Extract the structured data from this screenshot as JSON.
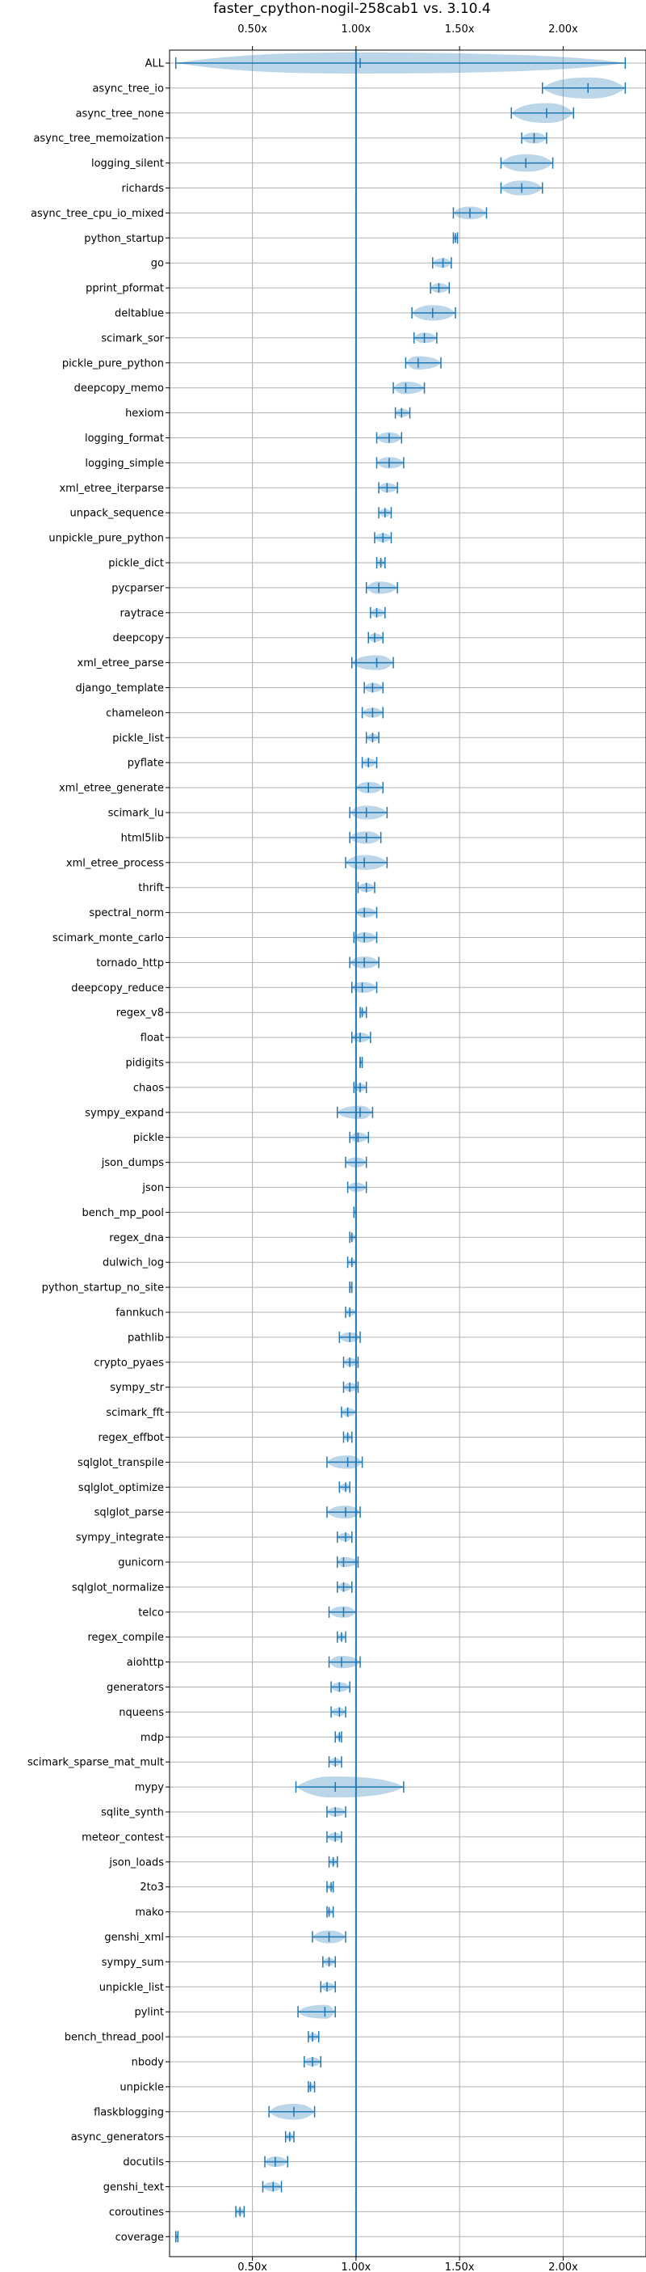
{
  "chart_data": {
    "type": "violin",
    "title": "faster_cpython-nogil-258cab1 vs. 3.10.4",
    "xlim": [
      0.1,
      2.4
    ],
    "xticks": [
      {
        "value": 0.5,
        "label": "0.50x"
      },
      {
        "value": 1.0,
        "label": "1.00x"
      },
      {
        "value": 1.5,
        "label": "1.50x"
      },
      {
        "value": 2.0,
        "label": "2.00x"
      }
    ],
    "reference_line": 1.0,
    "grid": true,
    "colors": {
      "violin": "#1f77b4",
      "line": "#1f77b4",
      "grid": "#b0b0b0"
    },
    "benchmarks": [
      {
        "name": "ALL",
        "min": 0.13,
        "max": 2.3,
        "median": 1.02
      },
      {
        "name": "async_tree_io",
        "min": 1.9,
        "max": 2.3,
        "median": 2.12
      },
      {
        "name": "async_tree_none",
        "min": 1.75,
        "max": 2.05,
        "median": 1.92
      },
      {
        "name": "async_tree_memoization",
        "min": 1.8,
        "max": 1.92,
        "median": 1.86
      },
      {
        "name": "logging_silent",
        "min": 1.7,
        "max": 1.95,
        "median": 1.82
      },
      {
        "name": "richards",
        "min": 1.7,
        "max": 1.9,
        "median": 1.8
      },
      {
        "name": "async_tree_cpu_io_mixed",
        "min": 1.47,
        "max": 1.63,
        "median": 1.55
      },
      {
        "name": "python_startup",
        "min": 1.47,
        "max": 1.49,
        "median": 1.48
      },
      {
        "name": "go",
        "min": 1.37,
        "max": 1.46,
        "median": 1.42
      },
      {
        "name": "pprint_pformat",
        "min": 1.36,
        "max": 1.45,
        "median": 1.4
      },
      {
        "name": "deltablue",
        "min": 1.27,
        "max": 1.48,
        "median": 1.37
      },
      {
        "name": "scimark_sor",
        "min": 1.28,
        "max": 1.39,
        "median": 1.33
      },
      {
        "name": "pickle_pure_python",
        "min": 1.24,
        "max": 1.41,
        "median": 1.3
      },
      {
        "name": "deepcopy_memo",
        "min": 1.18,
        "max": 1.33,
        "median": 1.24
      },
      {
        "name": "hexiom",
        "min": 1.19,
        "max": 1.26,
        "median": 1.22
      },
      {
        "name": "logging_format",
        "min": 1.1,
        "max": 1.22,
        "median": 1.16
      },
      {
        "name": "logging_simple",
        "min": 1.1,
        "max": 1.23,
        "median": 1.16
      },
      {
        "name": "xml_etree_iterparse",
        "min": 1.11,
        "max": 1.2,
        "median": 1.15
      },
      {
        "name": "unpack_sequence",
        "min": 1.11,
        "max": 1.17,
        "median": 1.14
      },
      {
        "name": "unpickle_pure_python",
        "min": 1.09,
        "max": 1.17,
        "median": 1.13
      },
      {
        "name": "pickle_dict",
        "min": 1.1,
        "max": 1.14,
        "median": 1.12
      },
      {
        "name": "pycparser",
        "min": 1.05,
        "max": 1.2,
        "median": 1.11
      },
      {
        "name": "raytrace",
        "min": 1.07,
        "max": 1.14,
        "median": 1.1
      },
      {
        "name": "deepcopy",
        "min": 1.06,
        "max": 1.13,
        "median": 1.09
      },
      {
        "name": "xml_etree_parse",
        "min": 0.98,
        "max": 1.18,
        "median": 1.1
      },
      {
        "name": "django_template",
        "min": 1.04,
        "max": 1.13,
        "median": 1.08
      },
      {
        "name": "chameleon",
        "min": 1.03,
        "max": 1.13,
        "median": 1.08
      },
      {
        "name": "pickle_list",
        "min": 1.05,
        "max": 1.11,
        "median": 1.08
      },
      {
        "name": "pyflate",
        "min": 1.03,
        "max": 1.1,
        "median": 1.06
      },
      {
        "name": "xml_etree_generate",
        "min": 1.0,
        "max": 1.13,
        "median": 1.06
      },
      {
        "name": "scimark_lu",
        "min": 0.97,
        "max": 1.15,
        "median": 1.05
      },
      {
        "name": "html5lib",
        "min": 0.97,
        "max": 1.12,
        "median": 1.05
      },
      {
        "name": "xml_etree_process",
        "min": 0.95,
        "max": 1.15,
        "median": 1.04
      },
      {
        "name": "thrift",
        "min": 1.01,
        "max": 1.09,
        "median": 1.05
      },
      {
        "name": "spectral_norm",
        "min": 1.0,
        "max": 1.1,
        "median": 1.04
      },
      {
        "name": "scimark_monte_carlo",
        "min": 0.99,
        "max": 1.1,
        "median": 1.04
      },
      {
        "name": "tornado_http",
        "min": 0.97,
        "max": 1.11,
        "median": 1.04
      },
      {
        "name": "deepcopy_reduce",
        "min": 0.98,
        "max": 1.1,
        "median": 1.03
      },
      {
        "name": "regex_v8",
        "min": 1.02,
        "max": 1.05,
        "median": 1.03
      },
      {
        "name": "float",
        "min": 0.98,
        "max": 1.07,
        "median": 1.02
      },
      {
        "name": "pidigits",
        "min": 1.02,
        "max": 1.03,
        "median": 1.02
      },
      {
        "name": "chaos",
        "min": 0.99,
        "max": 1.05,
        "median": 1.02
      },
      {
        "name": "sympy_expand",
        "min": 0.91,
        "max": 1.08,
        "median": 1.02
      },
      {
        "name": "pickle",
        "min": 0.97,
        "max": 1.06,
        "median": 1.01
      },
      {
        "name": "json_dumps",
        "min": 0.95,
        "max": 1.05,
        "median": 1.0
      },
      {
        "name": "json",
        "min": 0.96,
        "max": 1.05,
        "median": 1.0
      },
      {
        "name": "bench_mp_pool",
        "min": 0.99,
        "max": 1.0,
        "median": 1.0
      },
      {
        "name": "regex_dna",
        "min": 0.97,
        "max": 1.0,
        "median": 0.98
      },
      {
        "name": "dulwich_log",
        "min": 0.96,
        "max": 1.0,
        "median": 0.98
      },
      {
        "name": "python_startup_no_site",
        "min": 0.97,
        "max": 0.98,
        "median": 0.97
      },
      {
        "name": "fannkuch",
        "min": 0.95,
        "max": 1.0,
        "median": 0.97
      },
      {
        "name": "pathlib",
        "min": 0.92,
        "max": 1.02,
        "median": 0.97
      },
      {
        "name": "crypto_pyaes",
        "min": 0.94,
        "max": 1.01,
        "median": 0.97
      },
      {
        "name": "sympy_str",
        "min": 0.94,
        "max": 1.01,
        "median": 0.97
      },
      {
        "name": "scimark_fft",
        "min": 0.93,
        "max": 1.0,
        "median": 0.96
      },
      {
        "name": "regex_effbot",
        "min": 0.94,
        "max": 0.98,
        "median": 0.96
      },
      {
        "name": "sqlglot_transpile",
        "min": 0.86,
        "max": 1.03,
        "median": 0.96
      },
      {
        "name": "sqlglot_optimize",
        "min": 0.92,
        "max": 0.97,
        "median": 0.95
      },
      {
        "name": "sqlglot_parse",
        "min": 0.86,
        "max": 1.02,
        "median": 0.95
      },
      {
        "name": "sympy_integrate",
        "min": 0.91,
        "max": 0.98,
        "median": 0.95
      },
      {
        "name": "gunicorn",
        "min": 0.91,
        "max": 1.01,
        "median": 0.94
      },
      {
        "name": "sqlglot_normalize",
        "min": 0.91,
        "max": 0.98,
        "median": 0.94
      },
      {
        "name": "telco",
        "min": 0.87,
        "max": 1.0,
        "median": 0.94
      },
      {
        "name": "regex_compile",
        "min": 0.91,
        "max": 0.95,
        "median": 0.93
      },
      {
        "name": "aiohttp",
        "min": 0.87,
        "max": 1.02,
        "median": 0.93
      },
      {
        "name": "generators",
        "min": 0.88,
        "max": 0.97,
        "median": 0.92
      },
      {
        "name": "nqueens",
        "min": 0.88,
        "max": 0.95,
        "median": 0.92
      },
      {
        "name": "mdp",
        "min": 0.9,
        "max": 0.93,
        "median": 0.92
      },
      {
        "name": "scimark_sparse_mat_mult",
        "min": 0.87,
        "max": 0.93,
        "median": 0.9
      },
      {
        "name": "mypy",
        "min": 0.71,
        "max": 1.23,
        "median": 0.9
      },
      {
        "name": "sqlite_synth",
        "min": 0.86,
        "max": 0.95,
        "median": 0.9
      },
      {
        "name": "meteor_contest",
        "min": 0.86,
        "max": 0.93,
        "median": 0.9
      },
      {
        "name": "json_loads",
        "min": 0.87,
        "max": 0.91,
        "median": 0.89
      },
      {
        "name": "2to3",
        "min": 0.86,
        "max": 0.89,
        "median": 0.88
      },
      {
        "name": "mako",
        "min": 0.86,
        "max": 0.89,
        "median": 0.87
      },
      {
        "name": "genshi_xml",
        "min": 0.79,
        "max": 0.95,
        "median": 0.87
      },
      {
        "name": "sympy_sum",
        "min": 0.84,
        "max": 0.9,
        "median": 0.87
      },
      {
        "name": "unpickle_list",
        "min": 0.83,
        "max": 0.9,
        "median": 0.86
      },
      {
        "name": "pylint",
        "min": 0.72,
        "max": 0.9,
        "median": 0.85
      },
      {
        "name": "bench_thread_pool",
        "min": 0.77,
        "max": 0.82,
        "median": 0.79
      },
      {
        "name": "nbody",
        "min": 0.75,
        "max": 0.83,
        "median": 0.79
      },
      {
        "name": "unpickle",
        "min": 0.77,
        "max": 0.8,
        "median": 0.78
      },
      {
        "name": "flaskblogging",
        "min": 0.58,
        "max": 0.8,
        "median": 0.7
      },
      {
        "name": "async_generators",
        "min": 0.66,
        "max": 0.7,
        "median": 0.68
      },
      {
        "name": "docutils",
        "min": 0.56,
        "max": 0.67,
        "median": 0.61
      },
      {
        "name": "genshi_text",
        "min": 0.55,
        "max": 0.64,
        "median": 0.6
      },
      {
        "name": "coroutines",
        "min": 0.42,
        "max": 0.46,
        "median": 0.44
      },
      {
        "name": "coverage",
        "min": 0.13,
        "max": 0.14,
        "median": 0.13
      }
    ]
  }
}
